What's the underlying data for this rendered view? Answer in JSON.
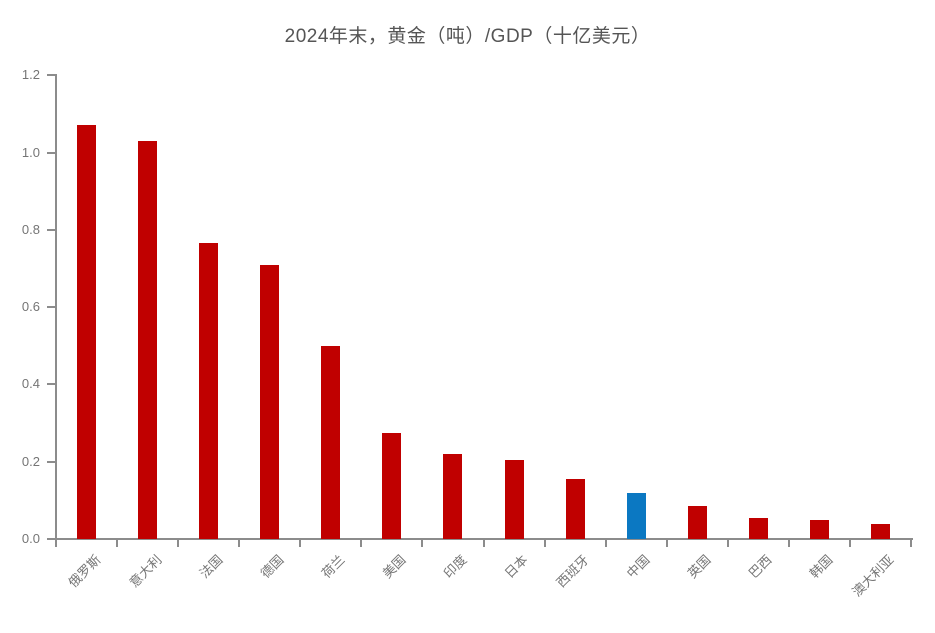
{
  "chart_data": {
    "type": "bar",
    "title": "2024年末，黄金（吨）/GDP（十亿美元）",
    "categories": [
      "俄罗斯",
      "意大利",
      "法国",
      "德国",
      "荷兰",
      "美国",
      "印度",
      "日本",
      "西班牙",
      "中国",
      "英国",
      "巴西",
      "韩国",
      "澳大利亚"
    ],
    "values": [
      1.07,
      1.03,
      0.765,
      0.71,
      0.5,
      0.275,
      0.22,
      0.205,
      0.155,
      0.12,
      0.085,
      0.055,
      0.05,
      0.04
    ],
    "highlight_category": "中国",
    "highlight_index": 9,
    "ylim": [
      0,
      1.2
    ],
    "ytick_step": 0.2,
    "ytick_labels": [
      "0.0",
      "0.2",
      "0.4",
      "0.6",
      "0.8",
      "1.0",
      "1.2"
    ],
    "xlabel": "",
    "ylabel": "",
    "grid": false,
    "legend": false,
    "colors": {
      "bar": "#C00000",
      "bar_highlight": "#0B78C2",
      "axis": "#8C8C8C",
      "tick_label": "#757575",
      "title": "#555555"
    }
  }
}
